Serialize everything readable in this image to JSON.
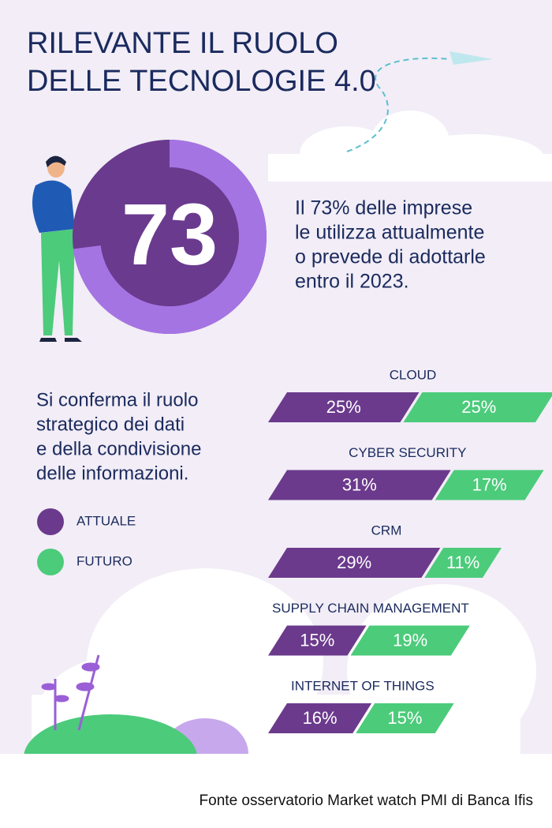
{
  "header": {
    "title_lines": [
      "RILEVANTE IL RUOLO",
      "DELLE TECNOLOGIE 4.0"
    ]
  },
  "chart_data": [
    {
      "type": "donut",
      "value": 73,
      "color": "#a574e3",
      "rest_color": "#6a3a8e",
      "text_lines": [
        "Il 73% delle imprese",
        "le utilizza attualmente",
        "o prevede di adottarle",
        "entro il 2023."
      ]
    },
    {
      "type": "bar",
      "orientation": "horizontal",
      "stacked": true,
      "text_lines": [
        "Si conferma il ruolo",
        "strategico dei dati",
        "e della condivisione",
        "delle informazioni."
      ],
      "categories": [
        "CLOUD",
        "CYBER SECURITY",
        "CRM",
        "SUPPLY CHAIN MANAGEMENT",
        "INTERNET OF THINGS"
      ],
      "series": [
        {
          "name": "ATTUALE",
          "color": "#6b3a8c",
          "values": [
            25,
            31,
            29,
            15,
            16
          ],
          "value_labels": [
            "25%",
            "31%",
            "29%",
            "15%",
            "16%"
          ]
        },
        {
          "name": "FUTURO",
          "color": "#4ccb7b",
          "values": [
            25,
            17,
            11,
            19,
            15
          ],
          "value_labels": [
            "25%",
            "17%",
            "11%",
            "19%",
            "15%"
          ]
        }
      ]
    }
  ],
  "source": "Fonte osservatorio Market watch PMI di Banca Ifis"
}
